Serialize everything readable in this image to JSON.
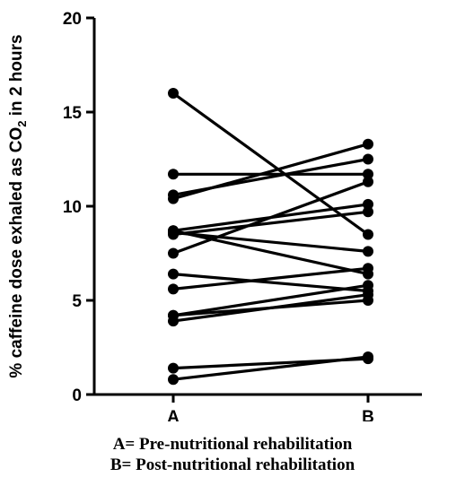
{
  "chart_data": {
    "type": "line",
    "title": "",
    "xlabel": "",
    "ylabel": "% caffeine dose exhaled as CO",
    "ylabel_sub": "2",
    "ylabel_suffix": " in 2 hours",
    "categories": [
      "A",
      "B"
    ],
    "ylim": [
      0,
      20
    ],
    "yticks": [
      0,
      5,
      10,
      15,
      20
    ],
    "grid": false,
    "legend": "none",
    "series": [
      {
        "values": [
          16.0,
          8.5
        ]
      },
      {
        "values": [
          11.7,
          11.7
        ]
      },
      {
        "values": [
          10.6,
          12.5
        ]
      },
      {
        "values": [
          10.4,
          13.3
        ]
      },
      {
        "values": [
          8.7,
          10.1
        ]
      },
      {
        "values": [
          8.6,
          7.6
        ]
      },
      {
        "values": [
          8.5,
          9.7
        ]
      },
      {
        "values": [
          8.7,
          6.4
        ]
      },
      {
        "values": [
          7.5,
          11.3
        ]
      },
      {
        "values": [
          6.4,
          5.5
        ]
      },
      {
        "values": [
          5.6,
          6.7
        ]
      },
      {
        "values": [
          4.2,
          5.8
        ]
      },
      {
        "values": [
          4.2,
          5.0
        ]
      },
      {
        "values": [
          3.9,
          5.3
        ]
      },
      {
        "values": [
          1.4,
          1.9
        ]
      },
      {
        "values": [
          0.8,
          2.0
        ]
      }
    ]
  },
  "captions": {
    "line1": "A= Pre-nutritional rehabilitation",
    "line2": "B= Post-nutritional rehabilitation"
  }
}
